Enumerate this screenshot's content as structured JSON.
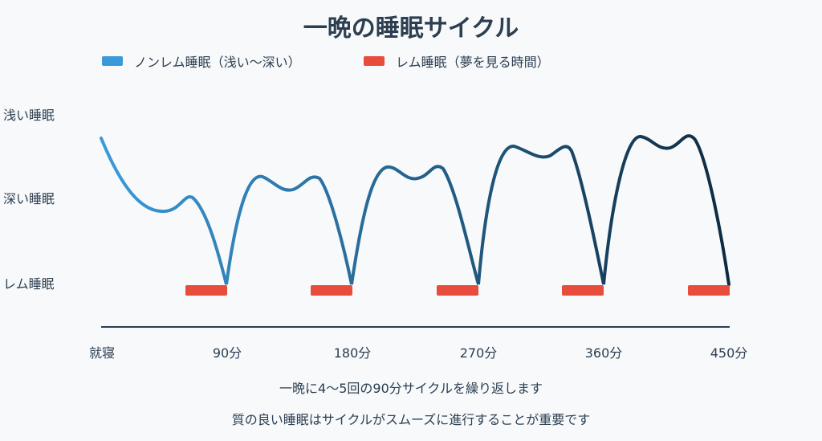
{
  "title": "一晩の睡眠サイクル",
  "legend": {
    "nonrem": {
      "label": "ノンレム睡眠（浅い〜深い）",
      "color": "#3a9ad9"
    },
    "rem": {
      "label": "レム睡眠（夢を見る時間）",
      "color": "#e74c3c"
    }
  },
  "y_labels": {
    "light": "浅い睡眠",
    "deep": "深い睡眠",
    "rem": "レム睡眠"
  },
  "x_labels": [
    "就寝",
    "90分",
    "180分",
    "270分",
    "360分",
    "450分"
  ],
  "notes": [
    "一晩に4〜5回の90分サイクルを繰り返します",
    "質の良い睡眠はサイクルがスムーズに進行することが重要です"
  ],
  "colors": {
    "curve_start": "#3a9ad9",
    "curve_end": "#0e2a40",
    "baseline": "#2c3e50"
  }
}
